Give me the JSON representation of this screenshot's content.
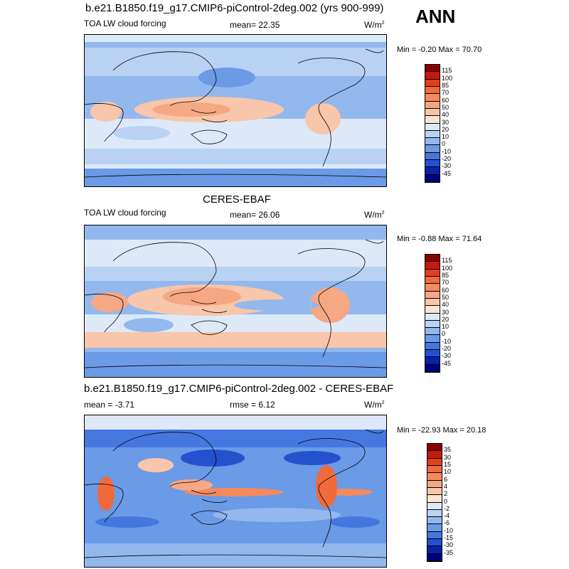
{
  "season": "ANN",
  "panels": [
    {
      "title": "b.e21.B1850.f19_g17.CMIP6-piControl-2deg.002 (yrs 900-999)",
      "variable": "TOA LW cloud forcing",
      "stat": "mean=  22.35",
      "rmse": "",
      "units_base": "W/m",
      "units_exp": "2",
      "minmax": "Min =  -0.20 Max =  70.70",
      "levels": [
        "115",
        "100",
        "85",
        "70",
        "60",
        "50",
        "40",
        "30",
        "20",
        "10",
        "0",
        "-10",
        "-20",
        "-30",
        "-45"
      ],
      "colors": [
        "#8b0000",
        "#c51b0c",
        "#e0401e",
        "#f06a3c",
        "#f48a5e",
        "#f6a784",
        "#f8c6aa",
        "#fbe4d4",
        "#dde9f8",
        "#b9d2f3",
        "#93b8ee",
        "#6b9ae6",
        "#4577df",
        "#2451cc",
        "#0a20a8",
        "#000080"
      ]
    },
    {
      "title": "CERES-EBAF",
      "variable": "TOA LW cloud forcing",
      "stat": "mean=  26.06",
      "rmse": "",
      "units_base": "W/m",
      "units_exp": "2",
      "minmax": "Min =  -0.88 Max =  71.64",
      "levels": [
        "115",
        "100",
        "85",
        "70",
        "60",
        "50",
        "40",
        "30",
        "20",
        "10",
        "0",
        "-10",
        "-20",
        "-30",
        "-45"
      ],
      "colors": [
        "#8b0000",
        "#c51b0c",
        "#e0401e",
        "#f06a3c",
        "#f48a5e",
        "#f6a784",
        "#f8c6aa",
        "#fbe4d4",
        "#dde9f8",
        "#b9d2f3",
        "#93b8ee",
        "#6b9ae6",
        "#4577df",
        "#2451cc",
        "#0a20a8",
        "#000080"
      ]
    },
    {
      "title": "b.e21.B1850.f19_g17.CMIP6-piControl-2deg.002 - CERES-EBAF",
      "variable": "",
      "stat": "mean =  -3.71",
      "rmse": "rmse =   6.12",
      "units_base": "W/m",
      "units_exp": "2",
      "minmax": "Min = -22.93 Max =  20.18",
      "levels": [
        "35",
        "30",
        "15",
        "10",
        "6",
        "4",
        "2",
        "0",
        "-2",
        "-4",
        "-6",
        "-10",
        "-15",
        "-30",
        "-35"
      ],
      "colors": [
        "#8b0000",
        "#c51b0c",
        "#e0401e",
        "#f06a3c",
        "#f48a5e",
        "#f6a784",
        "#f8c6aa",
        "#fbe4d4",
        "#dde9f8",
        "#b9d2f3",
        "#93b8ee",
        "#6b9ae6",
        "#4577df",
        "#2451cc",
        "#0a20a8",
        "#000080"
      ]
    }
  ]
}
